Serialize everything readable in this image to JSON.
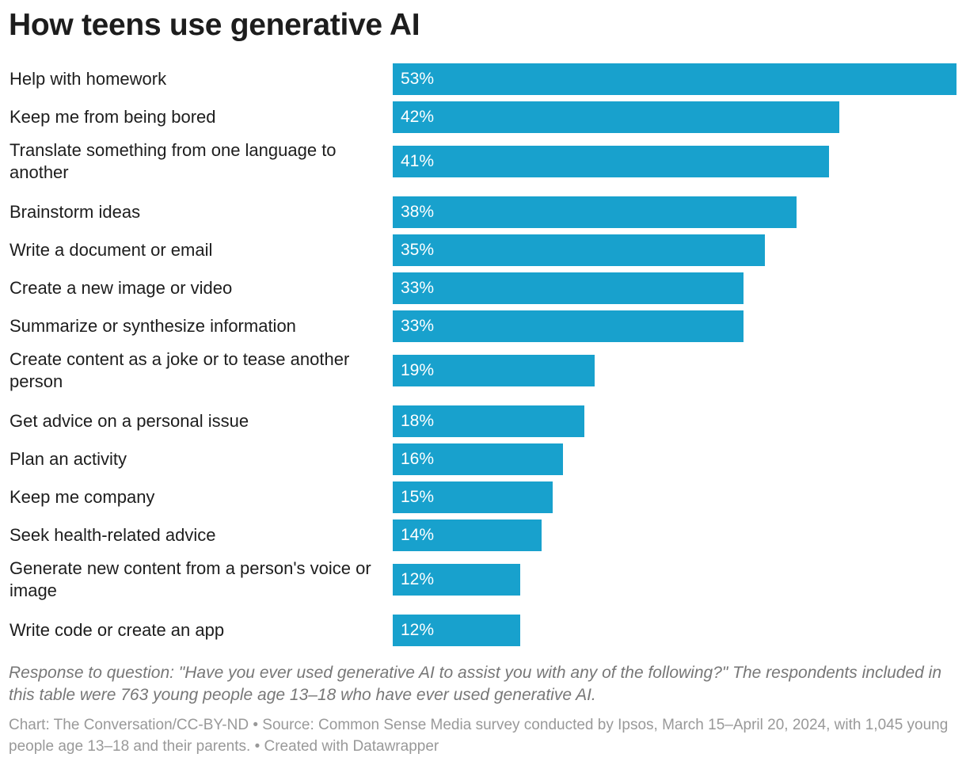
{
  "chart_data": {
    "type": "bar",
    "orientation": "horizontal",
    "title": "How teens use generative AI",
    "categories": [
      "Help with homework",
      "Keep me from being bored",
      "Translate something from one language to another",
      "Brainstorm ideas",
      "Write a document or email",
      "Create a new image or video",
      "Summarize or synthesize information",
      "Create content as a joke or to tease another person",
      "Get advice on a personal issue",
      "Plan an activity",
      "Keep me company",
      "Seek health-related advice",
      "Generate new content from a person's voice or image",
      "Write code or create an app"
    ],
    "values": [
      53,
      42,
      41,
      38,
      35,
      33,
      33,
      19,
      18,
      16,
      15,
      14,
      12,
      12
    ],
    "value_labels": [
      "53%",
      "42%",
      "41%",
      "38%",
      "35%",
      "33%",
      "33%",
      "19%",
      "18%",
      "16%",
      "15%",
      "14%",
      "12%",
      "12%"
    ],
    "xlim": [
      0,
      53
    ],
    "grid": false,
    "bar_color": "#18a1cd"
  },
  "notes": "Response to question: \"Have you ever used generative AI to assist you with any of the following?\" The respondents included in this table were 763 young people age 13–18 who have ever used generative AI.",
  "source": "Chart: The Conversation/CC-BY-ND • Source: Common Sense Media survey conducted by Ipsos, March 15–April 20, 2024, with 1,045 young people age 13–18 and their parents. • Created with Datawrapper"
}
